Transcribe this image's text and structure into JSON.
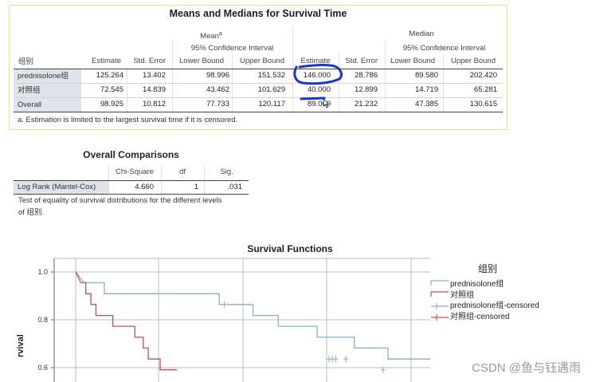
{
  "means_table": {
    "title": "Means and Medians for Survival Time",
    "mean_header": "Mean",
    "mean_superscript": "a",
    "median_header": "Median",
    "ci_header": "95% Confidence Interval",
    "group_label": "组别",
    "col_headers": [
      "Estimate",
      "Std. Error",
      "Lower Bound",
      "Upper Bound",
      "Estimate",
      "Std. Error",
      "Lower Bound",
      "Upper Bound"
    ],
    "rows": [
      {
        "label": "prednisolone组",
        "values": [
          "125.264",
          "13.402",
          "98.996",
          "151.532",
          "146.000",
          "28.786",
          "89.580",
          "202.420"
        ]
      },
      {
        "label": "对照组",
        "values": [
          "72.545",
          "14.839",
          "43.462",
          "101.629",
          "40.000",
          "12.899",
          "14.719",
          "65.281"
        ]
      },
      {
        "label": "Overall",
        "values": [
          "98.925",
          "10.812",
          "77.733",
          "120.117",
          "89.000",
          "21.232",
          "47.385",
          "130.615"
        ]
      }
    ],
    "footnote": "a. Estimation is limited to the largest survival time if it is censored."
  },
  "comparisons_table": {
    "title": "Overall Comparisons",
    "col_headers": [
      "Chi-Square",
      "df",
      "Sig."
    ],
    "row": {
      "label": "Log Rank (Mantel-Cox)",
      "values": [
        "4.660",
        "1",
        ".031"
      ]
    },
    "footnote_line1": "Test of equality of survival distributions for the different levels",
    "footnote_line2": "of 组别."
  },
  "chart_data": {
    "type": "line",
    "title": "Survival Functions",
    "ylabel": "Cum Survival",
    "ylabel_visible": "rvival",
    "yticks": [
      "1.0",
      "0.8",
      "0.6"
    ],
    "ylim": [
      0.55,
      1.05
    ],
    "xlim": [
      0,
      210
    ],
    "legend_title": "组别",
    "legend_position": "right",
    "colors": {
      "prednisolone": "#7fb0d8",
      "control": "#c0505a"
    },
    "series": [
      {
        "name": "prednisolone组",
        "type": "step",
        "points": [
          [
            0,
            1.0
          ],
          [
            5,
            0.955
          ],
          [
            17,
            0.955
          ],
          [
            17,
            0.909
          ],
          [
            85,
            0.909
          ],
          [
            85,
            0.864
          ],
          [
            105,
            0.864
          ],
          [
            105,
            0.818
          ],
          [
            120,
            0.818
          ],
          [
            120,
            0.773
          ],
          [
            143,
            0.773
          ],
          [
            143,
            0.727
          ],
          [
            165,
            0.727
          ],
          [
            165,
            0.682
          ],
          [
            185,
            0.682
          ],
          [
            185,
            0.636
          ],
          [
            210,
            0.636
          ]
        ]
      },
      {
        "name": "对照组",
        "type": "step",
        "points": [
          [
            0,
            1.0
          ],
          [
            3,
            0.955
          ],
          [
            6,
            0.955
          ],
          [
            6,
            0.909
          ],
          [
            9,
            0.909
          ],
          [
            9,
            0.864
          ],
          [
            12,
            0.864
          ],
          [
            12,
            0.818
          ],
          [
            22,
            0.818
          ],
          [
            22,
            0.773
          ],
          [
            35,
            0.773
          ],
          [
            35,
            0.727
          ],
          [
            40,
            0.727
          ],
          [
            40,
            0.682
          ],
          [
            43,
            0.682
          ],
          [
            43,
            0.636
          ],
          [
            50,
            0.636
          ],
          [
            50,
            0.591
          ],
          [
            60,
            0.591
          ]
        ]
      },
      {
        "name": "prednisolone组-censored",
        "type": "censor",
        "points": [
          [
            88,
            0.864
          ],
          [
            150,
            0.636
          ],
          [
            152,
            0.636
          ],
          [
            154,
            0.636
          ],
          [
            160,
            0.636
          ],
          [
            182,
            0.591
          ]
        ]
      },
      {
        "name": "对照组-censored",
        "type": "censor",
        "points": []
      }
    ]
  },
  "watermark": "CSDN @鱼与钰遇雨"
}
